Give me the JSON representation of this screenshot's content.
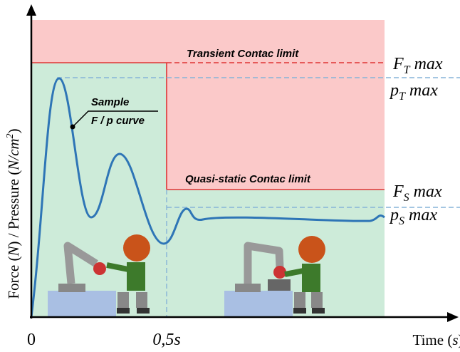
{
  "axes": {
    "y_label": {
      "pre": "Force (",
      "n": "N",
      "mid": ") / Pressure (",
      "unit": "N/cm",
      "sup": "2",
      "post": ")"
    },
    "x_label": {
      "pre": "Time (",
      "unit": "s",
      "post": ")"
    },
    "origin": "0",
    "mark": "0,5s"
  },
  "limits": {
    "transient": "Transient Contac limit",
    "quasi_static": "Quasi-static Contac limit"
  },
  "sample": {
    "line1": "Sample",
    "line2": "F / p curve"
  },
  "levels": [
    {
      "symbol": "F",
      "sub": "T",
      "suffix": "max"
    },
    {
      "symbol": "p",
      "sub": "T",
      "suffix": "max"
    },
    {
      "symbol": "F",
      "sub": "S",
      "suffix": "max"
    },
    {
      "symbol": "p",
      "sub": "S",
      "suffix": "max"
    }
  ]
}
